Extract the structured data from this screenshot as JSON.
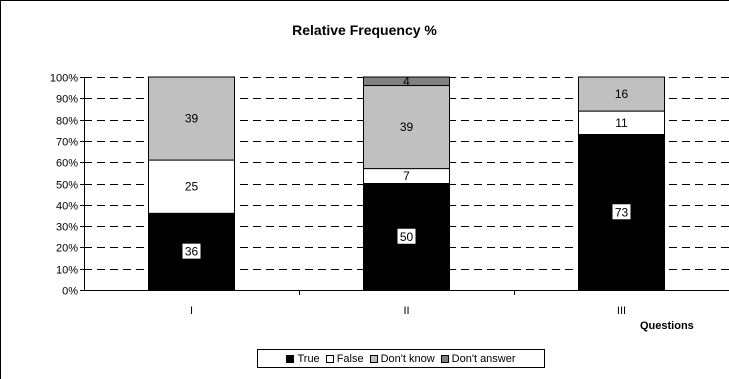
{
  "chart_data": {
    "type": "bar",
    "stacked": true,
    "percent": true,
    "title": "Relative Frequency %",
    "xlabel": "Questions",
    "ylabel": "",
    "categories": [
      "I",
      "II",
      "III"
    ],
    "ylim": [
      0,
      100
    ],
    "yticks": [
      "0%",
      "10%",
      "20%",
      "30%",
      "40%",
      "50%",
      "60%",
      "70%",
      "80%",
      "90%",
      "100%"
    ],
    "grid": "dashed horizontal",
    "legend_position": "bottom",
    "series": [
      {
        "name": "True",
        "color": "#000000",
        "label_color": "#000000",
        "label_bg": "#ffffff",
        "values": [
          36,
          50,
          73
        ]
      },
      {
        "name": "False",
        "color": "#ffffff",
        "label_color": "#000000",
        "label_bg": null,
        "values": [
          25,
          7,
          11
        ]
      },
      {
        "name": "Don't know",
        "color": "#c0c0c0",
        "label_color": "#000000",
        "label_bg": null,
        "values": [
          39,
          39,
          16
        ]
      },
      {
        "name": "Don't answer",
        "color": "#808080",
        "label_color": "#000000",
        "label_bg": null,
        "values": [
          null,
          4,
          null
        ]
      }
    ]
  }
}
